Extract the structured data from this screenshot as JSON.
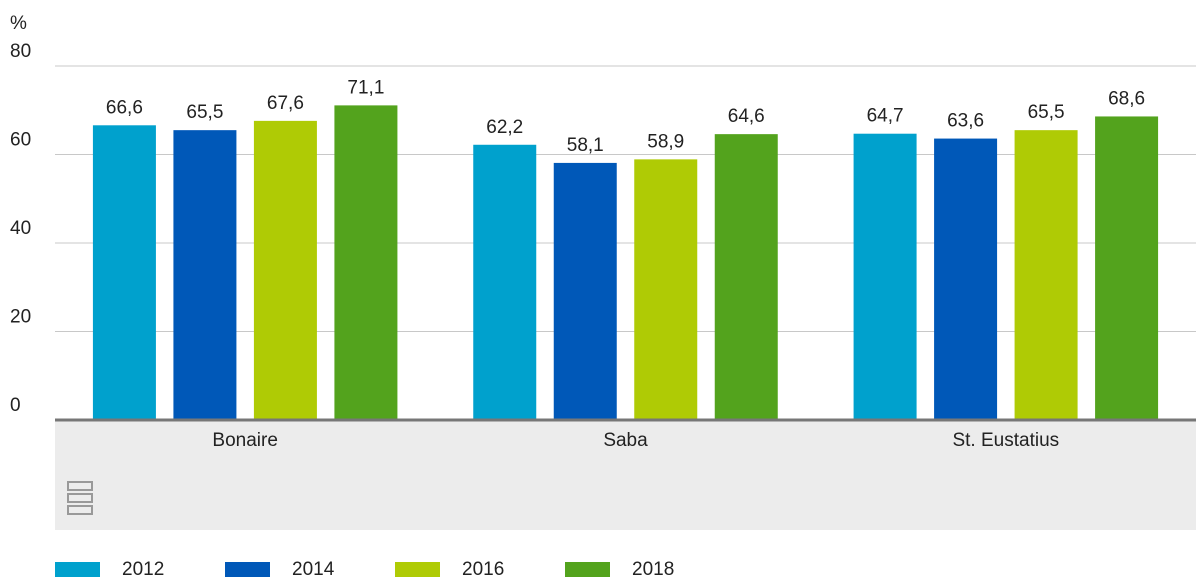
{
  "chart_data": {
    "type": "bar",
    "y_label": "%",
    "categories": [
      "Bonaire",
      "Saba",
      "St. Eustatius"
    ],
    "series": [
      {
        "name": "2012",
        "color": "#00a1cd",
        "values": [
          66.6,
          62.2,
          64.7
        ],
        "value_labels": [
          "66,6",
          "62,2",
          "64,7"
        ]
      },
      {
        "name": "2014",
        "color": "#0058b8",
        "values": [
          65.5,
          58.1,
          63.6
        ],
        "value_labels": [
          "65,5",
          "58,1",
          "63,6"
        ]
      },
      {
        "name": "2016",
        "color": "#afcb05",
        "values": [
          67.6,
          58.9,
          65.5
        ],
        "value_labels": [
          "67,6",
          "58,9",
          "65,5"
        ]
      },
      {
        "name": "2018",
        "color": "#53a31d",
        "values": [
          71.1,
          64.6,
          68.6
        ],
        "value_labels": [
          "71,1",
          "64,6",
          "68,6"
        ]
      }
    ],
    "ylim": [
      0,
      80
    ],
    "yticks": [
      0,
      20,
      40,
      60,
      80
    ],
    "grid": true,
    "legend": "bottom"
  }
}
